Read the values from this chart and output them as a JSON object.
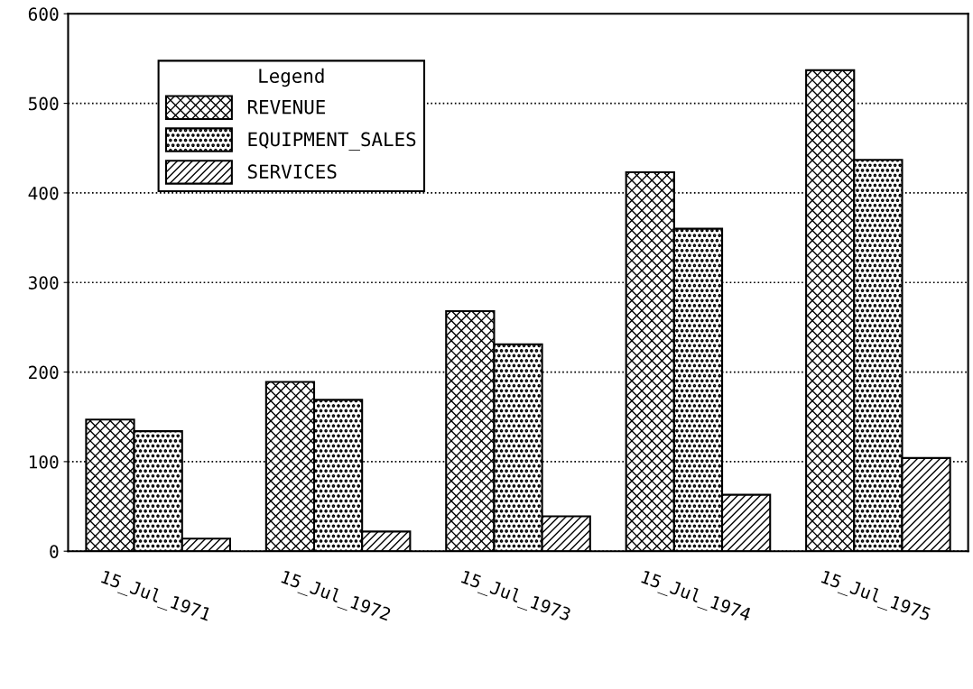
{
  "chart_data": {
    "type": "bar",
    "legend_title": "Legend",
    "categories": [
      "15_Jul_1971",
      "15_Jul_1972",
      "15_Jul_1973",
      "15_Jul_1974",
      "15_Jul_1975"
    ],
    "series": [
      {
        "name": "REVENUE",
        "color": "#000000",
        "values": [
          147,
          189,
          268,
          423,
          537
        ]
      },
      {
        "name": "EQUIPMENT_SALES",
        "color": "#000000",
        "values": [
          134,
          169,
          231,
          360,
          437
        ]
      },
      {
        "name": "SERVICES",
        "color": "#000000",
        "values": [
          14,
          22,
          39,
          63,
          104
        ]
      }
    ],
    "ylim": [
      0,
      600
    ],
    "yticks": [
      0,
      100,
      200,
      300,
      400,
      500,
      600
    ],
    "grid": "y",
    "legend": "top left"
  }
}
